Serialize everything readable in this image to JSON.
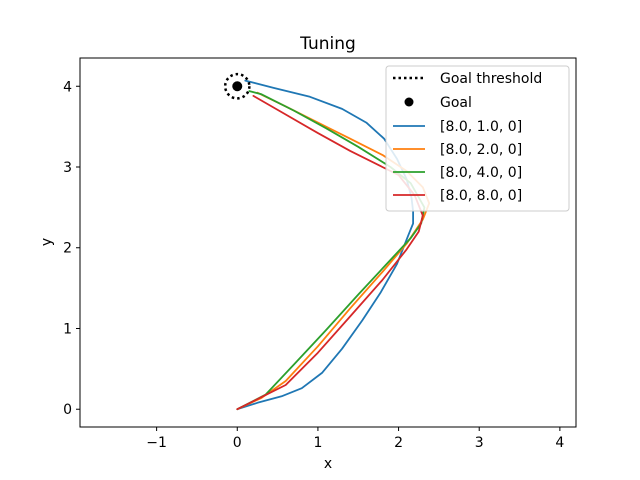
{
  "chart_data": {
    "type": "line",
    "title": "Tuning",
    "xlabel": "x",
    "ylabel": "y",
    "xlim": [
      -1.95,
      4.2
    ],
    "ylim": [
      -0.22,
      4.35
    ],
    "xticks": [
      -1,
      0,
      1,
      2,
      3,
      4
    ],
    "xtick_labels": [
      "−1",
      "0",
      "1",
      "2",
      "3",
      "4"
    ],
    "yticks": [
      0,
      1,
      2,
      3,
      4
    ],
    "ytick_labels": [
      "0",
      "1",
      "2",
      "3",
      "4"
    ],
    "grid": false,
    "legend_position": "top-right",
    "goal": {
      "name": "Goal",
      "x": 0.0,
      "y": 4.0,
      "color": "#000000"
    },
    "goal_threshold": {
      "name": "Goal threshold",
      "radius": 0.15,
      "color": "#000000"
    },
    "series": [
      {
        "name": "[8.0, 1.0, 0]",
        "color": "#1f77b4",
        "x": [
          0.0,
          0.25,
          0.55,
          0.8,
          1.05,
          1.3,
          1.55,
          1.78,
          1.98,
          2.12,
          2.18,
          2.18,
          2.16,
          2.1,
          1.98,
          1.82,
          1.6,
          1.3,
          0.9,
          0.45,
          0.1
        ],
        "y": [
          0.0,
          0.08,
          0.16,
          0.26,
          0.45,
          0.75,
          1.1,
          1.45,
          1.8,
          2.15,
          2.3,
          2.45,
          2.62,
          2.85,
          3.1,
          3.35,
          3.55,
          3.72,
          3.87,
          3.98,
          4.07
        ]
      },
      {
        "name": "[8.0, 2.0, 0]",
        "color": "#ff7f0e",
        "x": [
          0.0,
          0.3,
          0.6,
          1.0,
          1.4,
          1.8,
          2.1,
          2.3,
          2.38,
          2.3,
          2.1,
          1.8,
          1.4,
          1.0,
          0.6,
          0.25
        ],
        "y": [
          0.0,
          0.14,
          0.35,
          0.78,
          1.25,
          1.7,
          2.05,
          2.35,
          2.55,
          2.75,
          2.95,
          3.15,
          3.35,
          3.55,
          3.75,
          3.92
        ]
      },
      {
        "name": "[8.0, 4.0, 0]",
        "color": "#2ca02c",
        "x": [
          0.0,
          0.35,
          0.7,
          1.1,
          1.5,
          1.9,
          2.15,
          2.28,
          2.32,
          2.15,
          1.9,
          1.5,
          1.1,
          0.7,
          0.3,
          0.15
        ],
        "y": [
          0.0,
          0.18,
          0.55,
          0.98,
          1.42,
          1.85,
          2.12,
          2.3,
          2.5,
          2.8,
          3.0,
          3.25,
          3.48,
          3.7,
          3.9,
          3.94
        ]
      },
      {
        "name": "[8.0, 8.0, 0]",
        "color": "#d62728",
        "x": [
          0.0,
          0.3,
          0.6,
          1.0,
          1.4,
          1.8,
          2.1,
          2.25,
          2.3,
          2.2,
          2.0,
          1.8,
          1.4,
          1.0,
          0.6,
          0.2
        ],
        "y": [
          0.0,
          0.15,
          0.3,
          0.7,
          1.15,
          1.6,
          1.98,
          2.2,
          2.4,
          2.65,
          2.9,
          3.0,
          3.2,
          3.42,
          3.65,
          3.88
        ]
      }
    ]
  }
}
